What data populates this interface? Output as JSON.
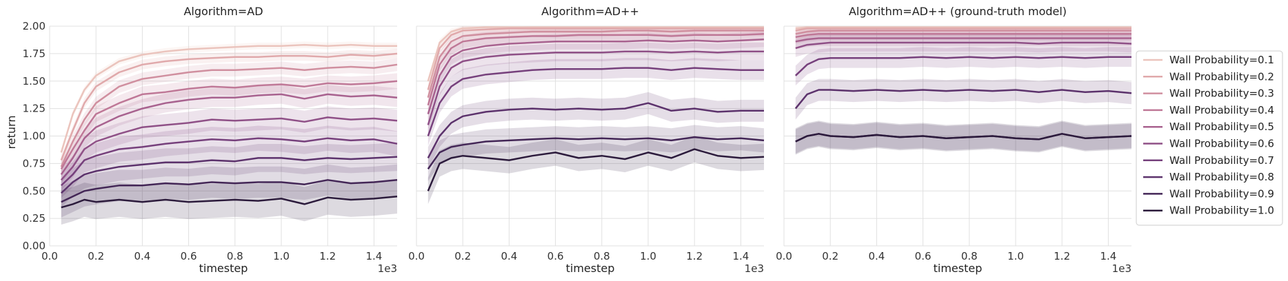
{
  "chart_data": {
    "type": "line",
    "ylabel": "return",
    "xlabel": "timestep",
    "x_scale_label": "1e3",
    "xlim": [
      0,
      1.5
    ],
    "ylim": [
      0,
      2.0
    ],
    "x_ticks": [
      "0.0",
      "0.2",
      "0.4",
      "0.6",
      "0.8",
      "1.0",
      "1.2",
      "1.4"
    ],
    "y_ticks": [
      "0.00",
      "0.25",
      "0.50",
      "0.75",
      "1.00",
      "1.25",
      "1.50",
      "1.75",
      "2.00"
    ],
    "grid": true,
    "legend_position": "right",
    "x": [
      0.05,
      0.1,
      0.15,
      0.2,
      0.3,
      0.4,
      0.5,
      0.6,
      0.7,
      0.8,
      0.9,
      1.0,
      1.1,
      1.2,
      1.3,
      1.4,
      1.5
    ],
    "series_colors": [
      "#ebc4bd",
      "#e0a9ab",
      "#d08f9f",
      "#bf7897",
      "#a8628f",
      "#8f5087",
      "#76407c",
      "#5c326c",
      "#432656",
      "#2c1b3c"
    ],
    "series_names": [
      "Wall Probability=0.1",
      "Wall Probability=0.2",
      "Wall Probability=0.3",
      "Wall Probability=0.4",
      "Wall Probability=0.5",
      "Wall Probability=0.6",
      "Wall Probability=0.7",
      "Wall Probability=0.8",
      "Wall Probability=0.9",
      "Wall Probability=1.0"
    ],
    "panels": [
      {
        "title": "Algorithm=AD",
        "series": [
          {
            "name": "Wall Probability=0.1",
            "values": [
              0.85,
              1.2,
              1.42,
              1.55,
              1.68,
              1.74,
              1.77,
              1.79,
              1.8,
              1.81,
              1.82,
              1.82,
              1.83,
              1.82,
              1.83,
              1.82,
              1.82
            ]
          },
          {
            "name": "Wall Probability=0.2",
            "values": [
              0.78,
              1.05,
              1.3,
              1.45,
              1.58,
              1.65,
              1.68,
              1.7,
              1.71,
              1.72,
              1.72,
              1.73,
              1.73,
              1.72,
              1.74,
              1.73,
              1.75
            ]
          },
          {
            "name": "Wall Probability=0.3",
            "values": [
              0.72,
              0.95,
              1.15,
              1.3,
              1.45,
              1.52,
              1.55,
              1.58,
              1.6,
              1.6,
              1.61,
              1.62,
              1.6,
              1.62,
              1.63,
              1.62,
              1.65
            ]
          },
          {
            "name": "Wall Probability=0.4",
            "values": [
              0.7,
              0.88,
              1.05,
              1.2,
              1.3,
              1.38,
              1.4,
              1.43,
              1.45,
              1.44,
              1.46,
              1.47,
              1.45,
              1.48,
              1.47,
              1.48,
              1.5
            ]
          },
          {
            "name": "Wall Probability=0.5",
            "values": [
              0.65,
              0.8,
              0.98,
              1.08,
              1.18,
              1.25,
              1.3,
              1.33,
              1.35,
              1.35,
              1.37,
              1.38,
              1.34,
              1.38,
              1.36,
              1.37,
              1.35
            ]
          },
          {
            "name": "Wall Probability=0.6",
            "values": [
              0.6,
              0.72,
              0.88,
              0.95,
              1.02,
              1.08,
              1.1,
              1.12,
              1.15,
              1.14,
              1.15,
              1.16,
              1.13,
              1.17,
              1.15,
              1.16,
              1.14
            ]
          },
          {
            "name": "Wall Probability=0.7",
            "values": [
              0.55,
              0.65,
              0.78,
              0.82,
              0.88,
              0.9,
              0.93,
              0.95,
              0.97,
              0.96,
              0.98,
              0.97,
              0.95,
              0.98,
              0.96,
              0.97,
              0.93
            ]
          },
          {
            "name": "Wall Probability=0.8",
            "values": [
              0.48,
              0.58,
              0.65,
              0.68,
              0.72,
              0.74,
              0.76,
              0.76,
              0.78,
              0.77,
              0.8,
              0.8,
              0.78,
              0.8,
              0.79,
              0.8,
              0.81
            ]
          },
          {
            "name": "Wall Probability=0.9",
            "values": [
              0.4,
              0.45,
              0.5,
              0.52,
              0.55,
              0.55,
              0.57,
              0.56,
              0.58,
              0.57,
              0.58,
              0.58,
              0.56,
              0.6,
              0.57,
              0.58,
              0.6
            ]
          },
          {
            "name": "Wall Probability=1.0",
            "values": [
              0.35,
              0.38,
              0.42,
              0.4,
              0.42,
              0.4,
              0.42,
              0.4,
              0.41,
              0.42,
              0.41,
              0.43,
              0.38,
              0.44,
              0.42,
              0.43,
              0.45
            ]
          }
        ]
      },
      {
        "title": "Algorithm=AD++",
        "series": [
          {
            "name": "Wall Probability=0.1",
            "values": [
              1.5,
              1.85,
              1.95,
              1.98,
              1.99,
              1.99,
              1.99,
              1.99,
              1.99,
              1.99,
              1.99,
              1.99,
              1.99,
              1.99,
              1.99,
              1.99,
              1.99
            ]
          },
          {
            "name": "Wall Probability=0.2",
            "values": [
              1.42,
              1.8,
              1.92,
              1.96,
              1.97,
              1.98,
              1.98,
              1.98,
              1.98,
              1.98,
              1.98,
              1.98,
              1.98,
              1.98,
              1.98,
              1.98,
              1.98
            ]
          },
          {
            "name": "Wall Probability=0.3",
            "values": [
              1.35,
              1.72,
              1.86,
              1.91,
              1.93,
              1.94,
              1.95,
              1.95,
              1.95,
              1.95,
              1.96,
              1.96,
              1.95,
              1.96,
              1.96,
              1.96,
              1.96
            ]
          },
          {
            "name": "Wall Probability=0.4",
            "values": [
              1.28,
              1.65,
              1.8,
              1.86,
              1.89,
              1.9,
              1.91,
              1.91,
              1.92,
              1.92,
              1.92,
              1.92,
              1.91,
              1.92,
              1.92,
              1.92,
              1.93
            ]
          },
          {
            "name": "Wall Probability=0.5",
            "values": [
              1.2,
              1.55,
              1.72,
              1.78,
              1.82,
              1.84,
              1.85,
              1.86,
              1.86,
              1.86,
              1.86,
              1.87,
              1.86,
              1.87,
              1.86,
              1.87,
              1.88
            ]
          },
          {
            "name": "Wall Probability=0.6",
            "values": [
              1.1,
              1.45,
              1.62,
              1.68,
              1.72,
              1.74,
              1.75,
              1.76,
              1.76,
              1.76,
              1.77,
              1.77,
              1.76,
              1.77,
              1.76,
              1.77,
              1.77
            ]
          },
          {
            "name": "Wall Probability=0.7",
            "values": [
              1.0,
              1.3,
              1.45,
              1.52,
              1.56,
              1.58,
              1.6,
              1.61,
              1.61,
              1.61,
              1.62,
              1.62,
              1.6,
              1.62,
              1.61,
              1.6,
              1.6
            ]
          },
          {
            "name": "Wall Probability=0.8",
            "values": [
              0.8,
              1.0,
              1.12,
              1.18,
              1.22,
              1.24,
              1.25,
              1.24,
              1.25,
              1.24,
              1.25,
              1.3,
              1.23,
              1.25,
              1.22,
              1.23,
              1.23
            ]
          },
          {
            "name": "Wall Probability=0.9",
            "values": [
              0.7,
              0.85,
              0.9,
              0.92,
              0.95,
              0.96,
              0.97,
              0.98,
              0.97,
              0.98,
              0.97,
              0.98,
              0.96,
              0.99,
              0.97,
              0.98,
              0.96
            ]
          },
          {
            "name": "Wall Probability=1.0",
            "values": [
              0.5,
              0.75,
              0.8,
              0.82,
              0.8,
              0.78,
              0.82,
              0.85,
              0.8,
              0.82,
              0.79,
              0.85,
              0.8,
              0.88,
              0.82,
              0.8,
              0.81
            ]
          }
        ]
      },
      {
        "title": "Algorithm=AD++ (ground-truth model)",
        "series": [
          {
            "name": "Wall Probability=0.1",
            "values": [
              1.98,
              1.99,
              1.99,
              1.99,
              1.99,
              1.99,
              1.99,
              1.99,
              1.99,
              1.99,
              1.99,
              1.99,
              1.99,
              1.99,
              1.99,
              1.99,
              1.99
            ]
          },
          {
            "name": "Wall Probability=0.2",
            "values": [
              1.96,
              1.98,
              1.98,
              1.98,
              1.98,
              1.98,
              1.98,
              1.98,
              1.98,
              1.98,
              1.98,
              1.98,
              1.98,
              1.98,
              1.98,
              1.98,
              1.98
            ]
          },
          {
            "name": "Wall Probability=0.3",
            "values": [
              1.93,
              1.95,
              1.96,
              1.96,
              1.96,
              1.96,
              1.96,
              1.96,
              1.96,
              1.96,
              1.96,
              1.96,
              1.96,
              1.96,
              1.96,
              1.96,
              1.96
            ]
          },
          {
            "name": "Wall Probability=0.4",
            "values": [
              1.9,
              1.92,
              1.93,
              1.93,
              1.93,
              1.93,
              1.93,
              1.93,
              1.93,
              1.93,
              1.93,
              1.93,
              1.93,
              1.93,
              1.93,
              1.93,
              1.93
            ]
          },
          {
            "name": "Wall Probability=0.5",
            "values": [
              1.86,
              1.88,
              1.89,
              1.89,
              1.89,
              1.89,
              1.89,
              1.89,
              1.89,
              1.89,
              1.89,
              1.89,
              1.89,
              1.89,
              1.89,
              1.89,
              1.89
            ]
          },
          {
            "name": "Wall Probability=0.6",
            "values": [
              1.8,
              1.83,
              1.84,
              1.85,
              1.85,
              1.85,
              1.85,
              1.85,
              1.85,
              1.85,
              1.85,
              1.85,
              1.84,
              1.85,
              1.85,
              1.85,
              1.84
            ]
          },
          {
            "name": "Wall Probability=0.7",
            "values": [
              1.55,
              1.65,
              1.7,
              1.71,
              1.71,
              1.71,
              1.71,
              1.72,
              1.71,
              1.72,
              1.71,
              1.72,
              1.71,
              1.72,
              1.71,
              1.72,
              1.72
            ]
          },
          {
            "name": "Wall Probability=0.8",
            "values": [
              1.25,
              1.38,
              1.42,
              1.42,
              1.41,
              1.42,
              1.41,
              1.42,
              1.41,
              1.42,
              1.41,
              1.42,
              1.4,
              1.42,
              1.4,
              1.41,
              1.39
            ]
          },
          {
            "name": "Wall Probability=0.9",
            "values": [
              0.95,
              1.0,
              1.02,
              1.0,
              0.99,
              1.01,
              0.99,
              1.0,
              0.98,
              0.99,
              1.0,
              0.98,
              0.97,
              1.02,
              0.98,
              0.99,
              1.0
            ]
          },
          {
            "name": "Wall Probability=1.0",
            "values": [
              0.95,
              1.0,
              1.02,
              1.0,
              0.99,
              1.01,
              0.99,
              1.0,
              0.98,
              0.99,
              1.0,
              0.98,
              0.97,
              1.02,
              0.98,
              0.99,
              1.0
            ]
          }
        ]
      }
    ]
  }
}
